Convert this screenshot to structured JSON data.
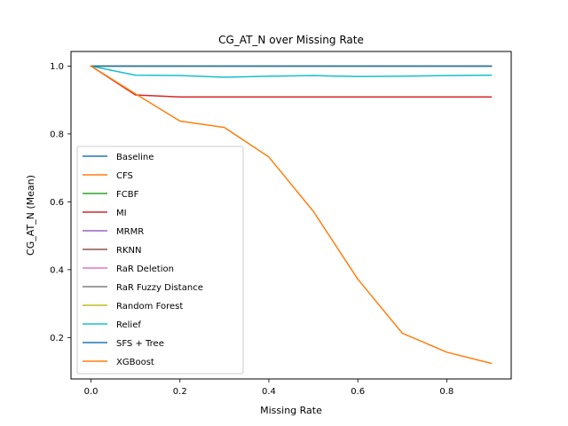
{
  "chart_data": {
    "type": "line",
    "title": "CG_AT_N over Missing Rate",
    "xlabel": "Missing Rate",
    "ylabel": "CG_AT_N (Mean)",
    "xlim": [
      -0.045,
      0.945
    ],
    "ylim": [
      0.078,
      1.043
    ],
    "xticks": [
      0.0,
      0.2,
      0.4,
      0.6,
      0.8
    ],
    "xtick_labels": [
      "0.0",
      "0.2",
      "0.4",
      "0.6",
      "0.8"
    ],
    "yticks": [
      0.2,
      0.4,
      0.6,
      0.8,
      1.0
    ],
    "ytick_labels": [
      "0.2",
      "0.4",
      "0.6",
      "0.8",
      "1.0"
    ],
    "grid": false,
    "legend_position": "left",
    "x": [
      0.0,
      0.1,
      0.2,
      0.3,
      0.4,
      0.5,
      0.6,
      0.7,
      0.8,
      0.9
    ],
    "series": [
      {
        "name": "Baseline",
        "color": "#1f77b4",
        "values": [
          1,
          1,
          1,
          1,
          1,
          1,
          1,
          1,
          1,
          1
        ]
      },
      {
        "name": "CFS",
        "color": "#ff7f0e",
        "values": [
          1,
          1,
          1,
          1,
          1,
          1,
          1,
          1,
          1,
          1
        ]
      },
      {
        "name": "FCBF",
        "color": "#2ca02c",
        "values": [
          1,
          1,
          1,
          1,
          1,
          1,
          1,
          1,
          1,
          1
        ]
      },
      {
        "name": "MI",
        "color": "#d62728",
        "values": [
          1.0,
          0.915,
          0.909,
          0.909,
          0.909,
          0.909,
          0.909,
          0.909,
          0.909,
          0.909
        ]
      },
      {
        "name": "MRMR",
        "color": "#9467bd",
        "values": [
          1,
          1,
          1,
          1,
          1,
          1,
          1,
          1,
          1,
          1
        ]
      },
      {
        "name": "RKNN",
        "color": "#8c564b",
        "values": [
          1,
          1,
          1,
          1,
          1,
          1,
          1,
          1,
          1,
          1
        ]
      },
      {
        "name": "RaR Deletion",
        "color": "#e377c2",
        "values": [
          1,
          1,
          1,
          1,
          1,
          1,
          1,
          1,
          1,
          1
        ]
      },
      {
        "name": "RaR Fuzzy Distance",
        "color": "#7f7f7f",
        "values": [
          1,
          1,
          1,
          1,
          1,
          1,
          1,
          1,
          1,
          1
        ]
      },
      {
        "name": "Random Forest",
        "color": "#bcbd22",
        "values": [
          1,
          1,
          1,
          1,
          1,
          1,
          1,
          1,
          1,
          1
        ]
      },
      {
        "name": "Relief",
        "color": "#17becf",
        "values": [
          1.0,
          0.973,
          0.972,
          0.967,
          0.97,
          0.972,
          0.969,
          0.97,
          0.972,
          0.973
        ]
      },
      {
        "name": "SFS + Tree",
        "color": "#1f77b4",
        "values": [
          1,
          1,
          1,
          1,
          1,
          1,
          1,
          1,
          1,
          1
        ]
      },
      {
        "name": "XGBoost",
        "color": "#ff7f0e",
        "values": [
          1.0,
          0.918,
          0.838,
          0.819,
          0.732,
          0.572,
          0.372,
          0.213,
          0.157,
          0.124
        ]
      }
    ]
  }
}
